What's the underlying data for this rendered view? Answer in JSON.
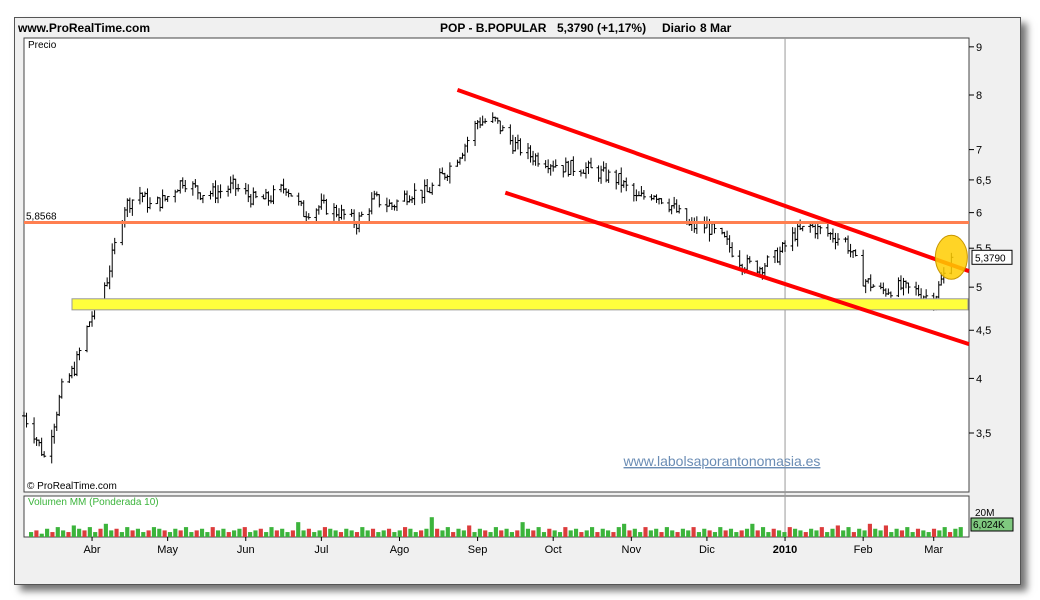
{
  "header": {
    "site": "www.ProRealTime.com",
    "symbol": "POP - B.POPULAR",
    "quote": "5,3790 (+1,17%)",
    "period": "Diario",
    "date": "8 Mar"
  },
  "panels": {
    "price_label": "Precio",
    "copyright": "© ProRealTime.com",
    "watermark": "www.labolsaporantonomasia.es",
    "volume_label": "Volumen MM (Ponderada 10)"
  },
  "colors": {
    "up_bar": "#000000",
    "support_line": "#ff7f50",
    "channel": "#ff0000",
    "zone": "#ffff3c",
    "vol_up": "#3cb43c",
    "vol_down": "#dc3c3c",
    "watermark": "#6a8cb4"
  },
  "chart_data": [
    {
      "type": "line",
      "title": "POP - B.POPULAR",
      "ylabel": "Precio",
      "xlabel": "",
      "ylim": [
        3.2,
        9.0
      ],
      "scale": "log",
      "grid": false,
      "yticks": [
        "9",
        "8",
        "7",
        "6,5",
        "6",
        "5,5",
        "5",
        "4,5",
        "4",
        "3,5"
      ],
      "ytick_values": [
        9,
        8,
        7,
        6.5,
        6,
        5.5,
        5,
        4.5,
        4,
        3.5
      ],
      "x_labels": [
        "Abr",
        "May",
        "Jun",
        "Jul",
        "Ago",
        "Sep",
        "Oct",
        "Nov",
        "Dic",
        "2010",
        "Feb",
        "Mar"
      ],
      "x_label_dates": [
        "2009-04-01",
        "2009-05-01",
        "2009-06-01",
        "2009-07-01",
        "2009-08-01",
        "2009-09-01",
        "2009-10-01",
        "2009-11-01",
        "2009-12-01",
        "2010-01-01",
        "2010-02-01",
        "2010-03-01"
      ],
      "x_range": [
        "2009-03-05",
        "2010-03-15"
      ],
      "series": [
        {
          "values_dates": [
            "2009-03-05",
            "2009-03-09",
            "2009-03-13",
            "2009-03-17",
            "2009-03-20",
            "2009-03-25",
            "2009-03-31",
            "2009-04-07",
            "2009-04-14",
            "2009-04-20",
            "2009-04-24",
            "2009-04-30",
            "2009-05-07",
            "2009-05-14",
            "2009-05-20",
            "2009-05-27",
            "2009-06-04",
            "2009-06-10",
            "2009-06-17",
            "2009-06-24",
            "2009-07-01",
            "2009-07-08",
            "2009-07-15",
            "2009-07-22",
            "2009-07-29",
            "2009-08-05",
            "2009-08-12",
            "2009-08-19",
            "2009-08-26",
            "2009-09-01",
            "2009-09-08",
            "2009-09-15",
            "2009-09-22",
            "2009-09-29",
            "2009-10-06",
            "2009-10-13",
            "2009-10-20",
            "2009-10-27",
            "2009-11-03",
            "2009-11-10",
            "2009-11-17",
            "2009-11-24",
            "2009-12-01",
            "2009-12-08",
            "2009-12-15",
            "2009-12-22",
            "2009-12-29",
            "2010-01-05",
            "2010-01-11",
            "2010-01-18",
            "2010-01-25",
            "2010-02-01",
            "2010-02-08",
            "2010-02-15",
            "2010-02-22",
            "2010-03-01",
            "2010-03-05",
            "2010-03-08"
          ],
          "values": [
            3.65,
            3.5,
            3.3,
            3.6,
            3.9,
            4.1,
            4.6,
            5.1,
            6.1,
            6.3,
            6.1,
            6.2,
            6.5,
            6.3,
            6.3,
            6.4,
            6.2,
            6.2,
            6.4,
            6.0,
            6.1,
            6.0,
            5.85,
            6.2,
            6.1,
            6.3,
            6.3,
            6.6,
            7.0,
            7.5,
            7.5,
            7.1,
            6.9,
            6.8,
            6.7,
            6.7,
            6.6,
            6.5,
            6.2,
            6.3,
            6.1,
            5.8,
            5.8,
            5.6,
            5.3,
            5.25,
            5.4,
            5.7,
            5.8,
            5.7,
            5.6,
            5.1,
            4.95,
            5.0,
            4.95,
            4.85,
            5.15,
            5.379
          ]
        }
      ],
      "last_value_label": "5,3790",
      "horizontal_line": {
        "value": 5.8568,
        "label": "5,8568"
      },
      "support_zone": [
        4.73,
        4.86
      ],
      "channel_lines": [
        {
          "from": [
            "2009-08-24",
            8.1
          ],
          "to": [
            "2010-03-15",
            5.2
          ]
        },
        {
          "from": [
            "2009-09-12",
            6.3
          ],
          "to": [
            "2010-03-15",
            4.35
          ]
        }
      ],
      "highlight": {
        "date": "2010-03-08",
        "value": 5.379
      }
    },
    {
      "type": "bar",
      "title": "Volumen MM (Ponderada 10)",
      "ylabel": "",
      "yticks": [
        "20M"
      ],
      "last_value_label": "6,024K",
      "values": [
        3,
        4,
        2,
        5,
        3,
        6,
        4,
        3,
        7,
        5,
        4,
        6,
        3,
        5,
        8,
        4,
        5,
        3,
        6,
        4,
        5,
        3,
        4,
        6,
        5,
        4,
        3,
        5,
        4,
        6,
        3,
        4,
        5,
        3,
        6,
        4,
        5,
        3,
        4,
        5,
        6,
        3,
        4,
        5,
        3,
        6,
        4,
        5,
        3,
        4,
        9,
        4,
        5,
        3,
        4,
        6,
        5,
        4,
        3,
        5,
        4,
        3,
        6,
        4,
        5,
        3,
        4,
        5,
        3,
        4,
        6,
        5,
        3,
        4,
        5,
        12,
        5,
        4,
        6,
        3,
        5,
        4,
        7,
        3,
        5,
        4,
        3,
        6,
        4,
        5,
        3,
        4,
        9,
        5,
        4,
        6,
        3,
        5,
        4,
        3,
        6,
        4,
        5,
        3,
        4,
        6,
        3,
        5,
        4,
        3,
        6,
        8,
        4,
        5,
        3,
        6,
        4,
        5,
        3,
        6,
        4,
        3,
        5,
        4,
        6,
        3,
        5,
        4,
        3,
        6,
        4,
        5,
        3,
        4,
        5,
        8,
        4,
        6,
        3,
        5,
        4,
        3,
        6,
        5,
        4,
        3,
        5,
        4,
        6,
        3,
        5,
        7,
        4,
        6,
        3,
        5,
        4,
        8,
        5,
        4,
        7,
        3,
        5,
        4,
        6,
        3,
        5,
        4,
        3,
        5,
        4,
        6,
        3,
        5,
        6
      ]
    }
  ]
}
